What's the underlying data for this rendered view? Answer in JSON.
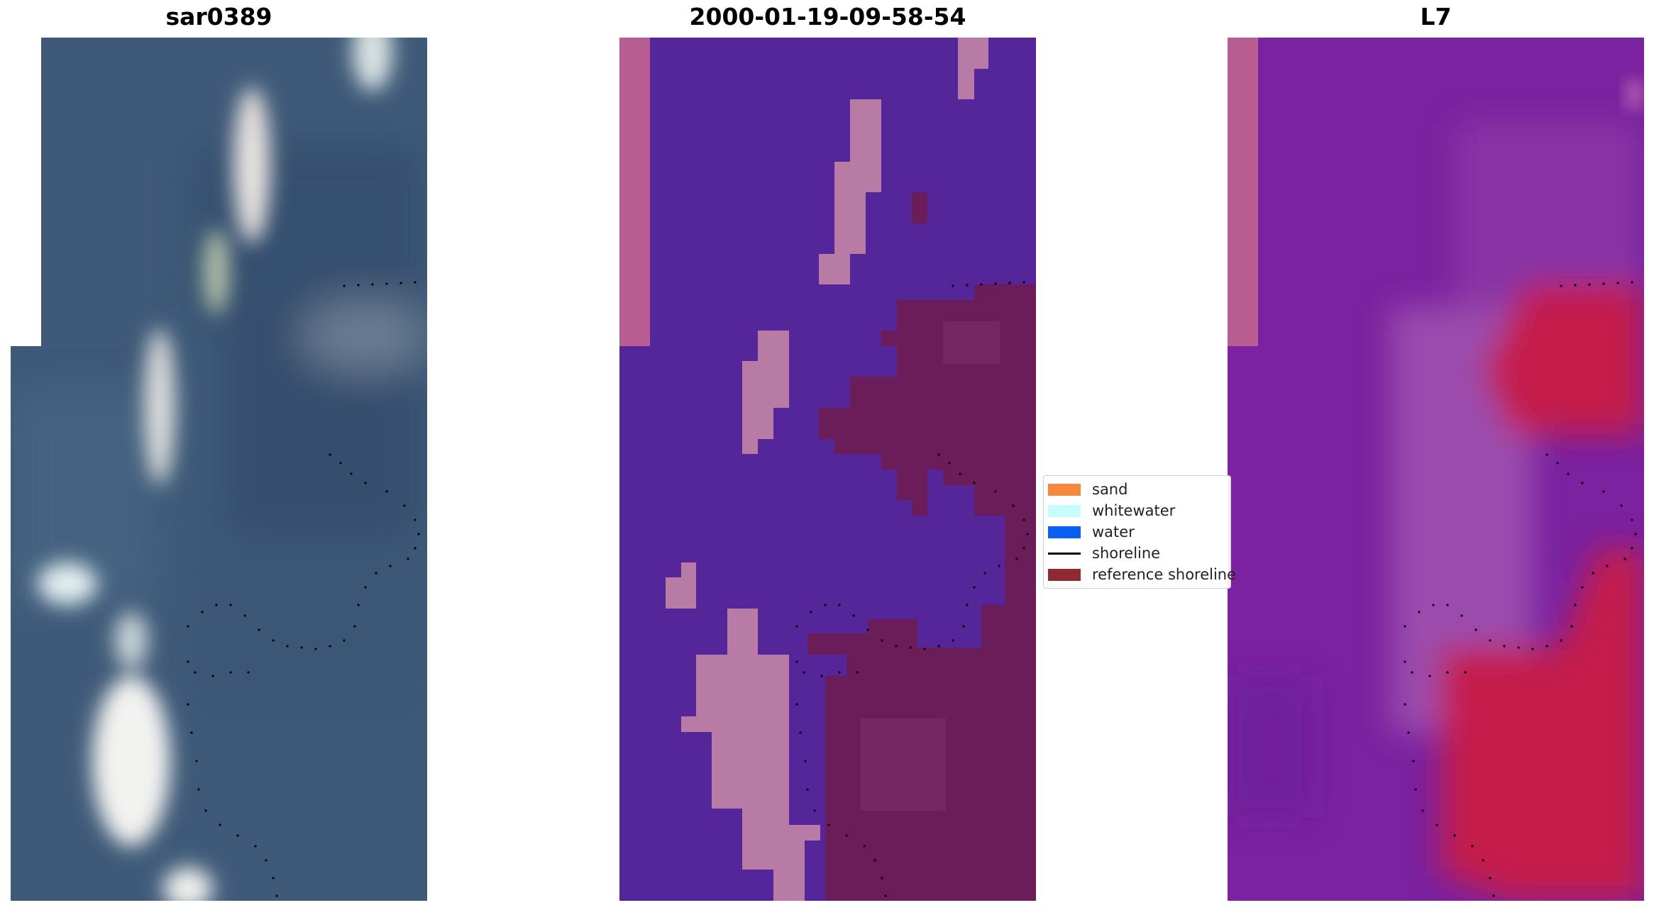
{
  "panels": [
    {
      "title": "sar0389"
    },
    {
      "title": "2000-01-19-09-58-54"
    },
    {
      "title": "L7"
    }
  ],
  "legend": {
    "items": [
      {
        "label": "sand",
        "type": "patch",
        "color": "#f7893e"
      },
      {
        "label": "whitewater",
        "type": "patch",
        "color": "#c8fdfd"
      },
      {
        "label": "water",
        "type": "patch",
        "color": "#0a5ff2"
      },
      {
        "label": "shoreline",
        "type": "line",
        "color": "#000000"
      },
      {
        "label": "reference shoreline",
        "type": "patch",
        "color": "#8e2a30"
      }
    ]
  },
  "colors": {
    "rgb_water": "#3e5a78",
    "class_water": "#55259a",
    "class_pink": "#b77ba5",
    "class_edge": "#b85e93",
    "class_land": "#6a1d58",
    "index_purple": "#7a22a0",
    "index_mid": "#a855b0",
    "index_red": "#c41a4c"
  }
}
